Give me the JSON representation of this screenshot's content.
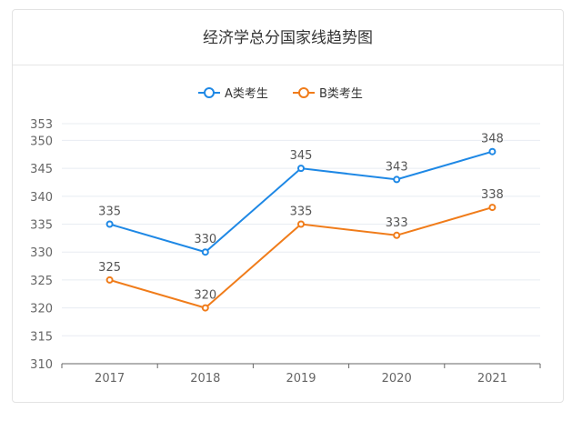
{
  "chart_data": {
    "type": "line",
    "title": "经济学总分国家线趋势图",
    "categories": [
      "2017",
      "2018",
      "2019",
      "2020",
      "2021"
    ],
    "series": [
      {
        "name": "A类考生",
        "values": [
          335,
          330,
          345,
          343,
          348
        ],
        "color": "#1e88e5"
      },
      {
        "name": "B类考生",
        "values": [
          325,
          320,
          335,
          333,
          338
        ],
        "color": "#f07c1a"
      }
    ],
    "yticks": [
      310,
      315,
      320,
      325,
      330,
      335,
      340,
      345,
      350,
      353
    ],
    "ylim": [
      310,
      353
    ],
    "xlabel": "",
    "ylabel": "",
    "grid": true,
    "legend": "top-center"
  }
}
